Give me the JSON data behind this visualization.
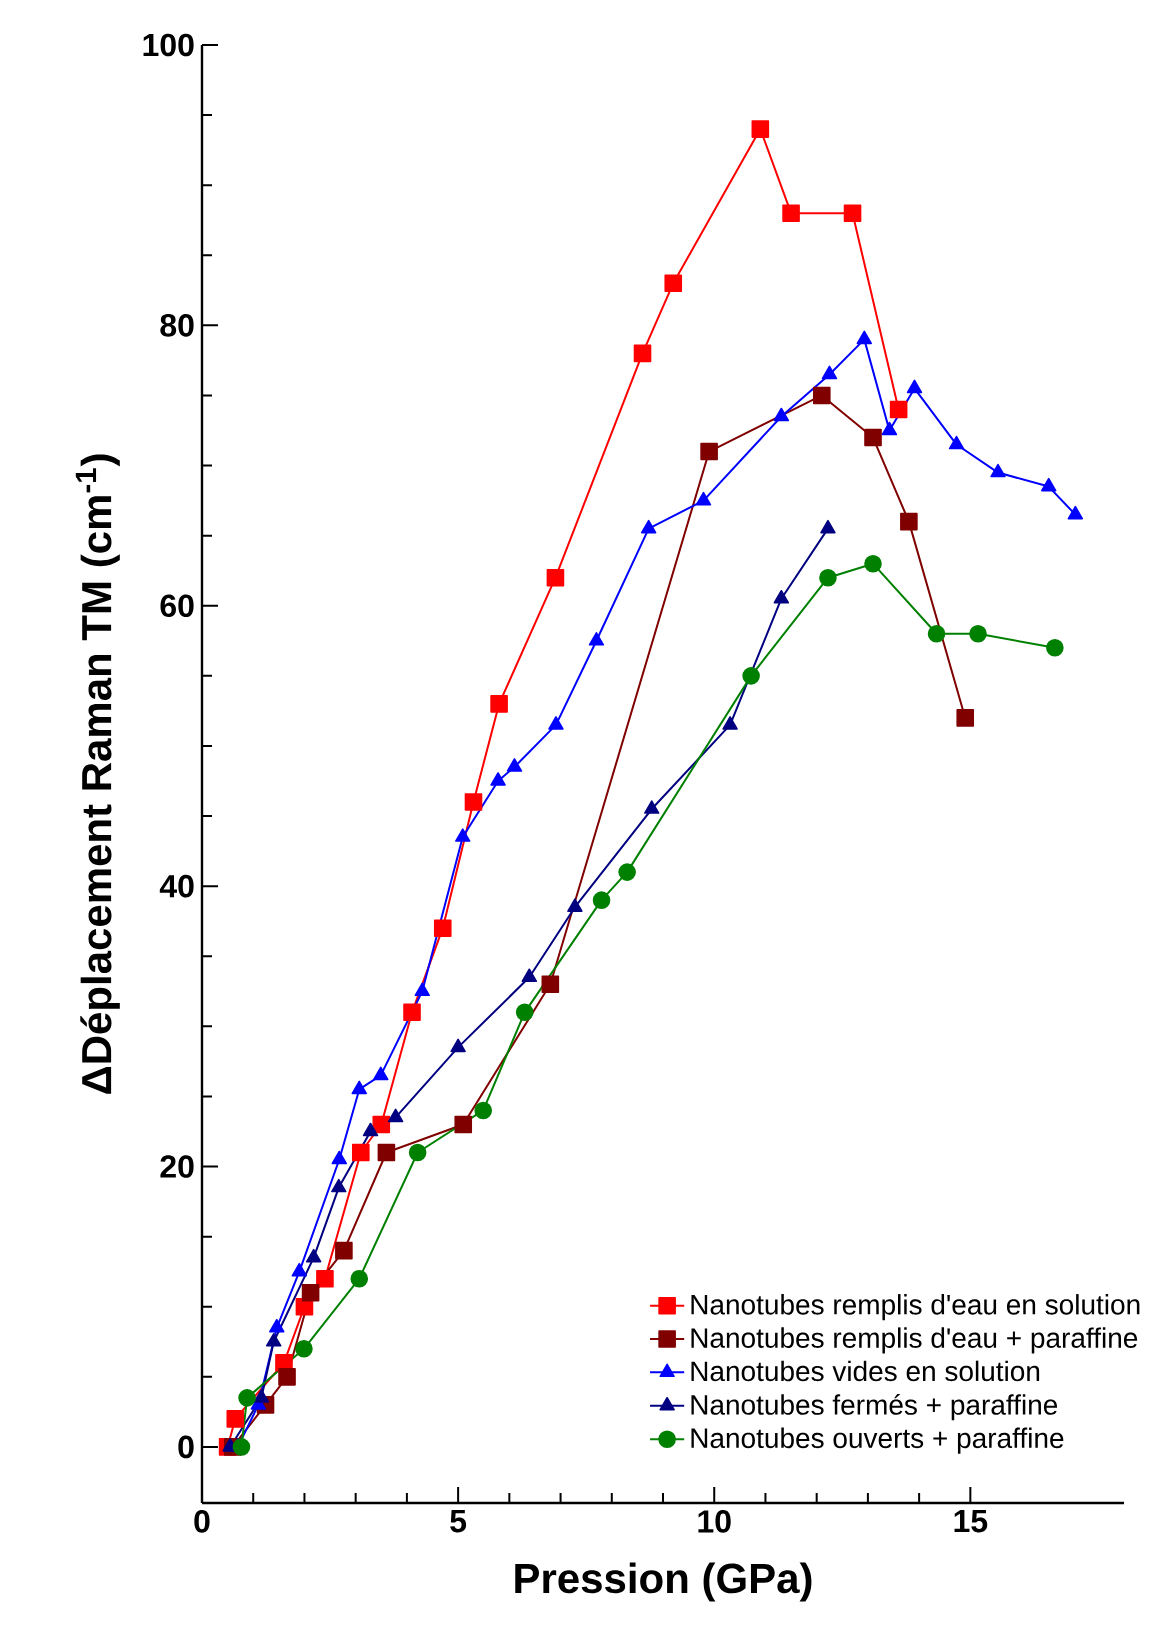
{
  "chart_data": {
    "type": "line",
    "xlabel": "Pression (GPa)",
    "ylabel": "ΔDéplacement Raman TM (cm$^{-1}$)",
    "xlim": [
      0,
      18
    ],
    "ylim": [
      -4,
      100
    ],
    "xticks": [
      0,
      5,
      10,
      15
    ],
    "yticks": [
      0,
      20,
      40,
      60,
      80,
      100
    ],
    "grid": false,
    "legend": "bottom right",
    "line_style": "solid",
    "series": [
      {
        "name": "Nanotubes remplis d'eau en solution",
        "color": "#ff0000",
        "marker": "square",
        "x": [
          0.5,
          0.65,
          1.6,
          2.0,
          2.4,
          3.1,
          3.5,
          4.1,
          4.7,
          5.3,
          5.8,
          6.9,
          8.6,
          9.2,
          10.9,
          11.5,
          12.7,
          13.6
        ],
        "values": [
          0,
          2,
          6,
          10,
          12,
          21,
          23,
          31,
          37,
          46,
          53,
          62,
          78,
          83,
          94,
          88,
          88,
          74
        ]
      },
      {
        "name": "Nanotubes remplis d'eau + paraffine",
        "color": "#800000",
        "marker": "square",
        "x": [
          0.6,
          1.24,
          1.66,
          2.12,
          2.77,
          3.6,
          5.1,
          6.8,
          9.9,
          12.1,
          13.1,
          13.8,
          14.9
        ],
        "values": [
          0,
          3,
          5,
          11,
          14,
          21,
          23,
          33,
          71,
          75,
          72,
          66,
          52
        ]
      },
      {
        "name": "Nanotubes vides en solution",
        "color": "#0000ff",
        "marker": "triangle",
        "x": [
          0.7,
          1.1,
          1.46,
          1.9,
          2.68,
          3.07,
          3.49,
          4.3,
          5.09,
          5.78,
          6.1,
          6.91,
          7.7,
          8.72,
          9.79,
          11.31,
          12.25,
          12.93,
          13.42,
          13.91,
          14.73,
          15.54,
          16.53,
          17.05
        ],
        "values": [
          0,
          3,
          8.5,
          12.5,
          20.5,
          25.5,
          26.5,
          32.5,
          43.5,
          47.5,
          48.5,
          51.5,
          57.5,
          65.5,
          67.5,
          73.5,
          76.5,
          79,
          72.5,
          75.5,
          71.5,
          69.5,
          68.5,
          66.5
        ]
      },
      {
        "name": "Nanotubes fermés + paraffine",
        "color": "#000080",
        "marker": "triangle",
        "x": [
          0.55,
          1.16,
          1.4,
          2.18,
          2.67,
          3.29,
          3.78,
          5.0,
          6.39,
          7.28,
          8.78,
          10.31,
          11.31,
          12.22
        ],
        "values": [
          0,
          3.5,
          7.5,
          13.5,
          18.5,
          22.5,
          23.5,
          28.5,
          33.5,
          38.5,
          45.5,
          51.5,
          60.5,
          65.5
        ]
      },
      {
        "name": "Nanotubes ouverts + paraffine",
        "color": "#008000",
        "marker": "circle",
        "x": [
          0.77,
          0.88,
          1.99,
          3.07,
          4.21,
          5.49,
          6.3,
          7.8,
          8.3,
          10.72,
          12.22,
          13.1,
          14.34,
          15.15,
          16.65
        ],
        "values": [
          0,
          3.5,
          7,
          12,
          21,
          24,
          31,
          39,
          41,
          55,
          62,
          63,
          58,
          58,
          57
        ]
      }
    ]
  }
}
